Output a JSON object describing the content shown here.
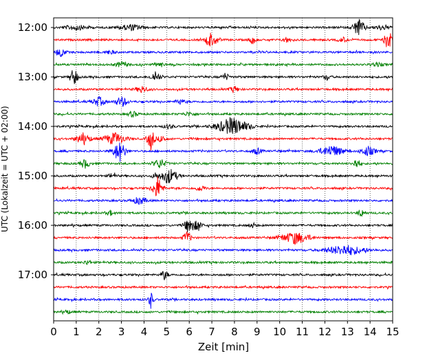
{
  "chart_data": {
    "type": "line",
    "title": "",
    "xlabel": "Zeit  [min]",
    "ylabel": "UTC (Lokalzeit = UTC + 02:00)",
    "xlim": [
      0,
      15
    ],
    "x_ticks": [
      "0",
      "1",
      "2",
      "3",
      "4",
      "5",
      "6",
      "7",
      "8",
      "9",
      "10",
      "11",
      "12",
      "13",
      "14",
      "15"
    ],
    "y_tick_labels": [
      "12:00",
      "13:00",
      "14:00",
      "15:00",
      "16:00",
      "17:00"
    ],
    "grid": "vertical dotted",
    "trace_colors": [
      "#000000",
      "#ff0000",
      "#0000ff",
      "#008000"
    ],
    "traces": [
      {
        "time": "12:00",
        "color": "#000000",
        "events": [
          [
            1.0,
            0.5,
            1.0
          ],
          [
            3.4,
            0.6,
            1.0
          ],
          [
            13.5,
            1.8,
            0.5
          ],
          [
            14.5,
            0.5,
            0.6
          ]
        ]
      },
      {
        "time": "12:15",
        "color": "#ff0000",
        "events": [
          [
            6.9,
            1.8,
            0.3
          ],
          [
            7.2,
            0.8,
            0.3
          ],
          [
            8.8,
            0.8,
            0.3
          ],
          [
            10.3,
            0.6,
            0.3
          ],
          [
            12.8,
            0.5,
            0.4
          ],
          [
            14.8,
            2.3,
            0.3
          ]
        ]
      },
      {
        "time": "12:30",
        "color": "#0000ff",
        "events": [
          [
            0.3,
            0.9,
            0.4
          ],
          [
            2.5,
            0.4,
            0.4
          ]
        ]
      },
      {
        "time": "12:45",
        "color": "#008000",
        "events": [
          [
            3.0,
            0.6,
            0.5
          ],
          [
            4.7,
            0.5,
            0.4
          ],
          [
            14.3,
            0.4,
            0.5
          ]
        ]
      },
      {
        "time": "13:00",
        "color": "#000000",
        "events": [
          [
            0.9,
            2.0,
            0.3
          ],
          [
            4.5,
            1.1,
            0.4
          ],
          [
            7.6,
            0.8,
            0.3
          ],
          [
            12.1,
            0.6,
            0.3
          ]
        ]
      },
      {
        "time": "13:15",
        "color": "#ff0000",
        "events": [
          [
            3.9,
            0.7,
            0.5
          ],
          [
            8.0,
            0.6,
            0.4
          ]
        ]
      },
      {
        "time": "13:30",
        "color": "#0000ff",
        "events": [
          [
            2.0,
            1.0,
            0.5
          ],
          [
            3.0,
            1.1,
            0.5
          ],
          [
            5.6,
            0.5,
            0.4
          ]
        ]
      },
      {
        "time": "13:45",
        "color": "#008000",
        "events": [
          [
            3.5,
            0.6,
            0.4
          ],
          [
            6.0,
            0.4,
            0.5
          ]
        ]
      },
      {
        "time": "14:00",
        "color": "#000000",
        "events": [
          [
            7.9,
            1.9,
            1.3
          ],
          [
            5.1,
            0.5,
            0.4
          ]
        ]
      },
      {
        "time": "14:15",
        "color": "#ff0000",
        "events": [
          [
            1.3,
            1.2,
            0.6
          ],
          [
            2.7,
            1.3,
            0.9
          ],
          [
            4.3,
            2.4,
            0.3
          ],
          [
            4.8,
            0.8,
            0.3
          ]
        ]
      },
      {
        "time": "14:30",
        "color": "#0000ff",
        "events": [
          [
            2.9,
            2.3,
            0.5
          ],
          [
            9.0,
            0.7,
            0.4
          ],
          [
            12.3,
            1.2,
            1.0
          ],
          [
            13.9,
            1.0,
            0.6
          ]
        ]
      },
      {
        "time": "14:45",
        "color": "#008000",
        "events": [
          [
            1.4,
            0.9,
            0.4
          ],
          [
            4.7,
            1.0,
            0.5
          ],
          [
            13.4,
            1.1,
            0.3
          ]
        ]
      },
      {
        "time": "15:00",
        "color": "#000000",
        "events": [
          [
            5.1,
            1.6,
            0.7
          ],
          [
            2.6,
            0.6,
            0.3
          ],
          [
            4.5,
            0.6,
            0.3
          ]
        ]
      },
      {
        "time": "15:15",
        "color": "#ff0000",
        "events": [
          [
            4.6,
            2.5,
            0.4
          ],
          [
            6.5,
            0.6,
            0.4
          ]
        ]
      },
      {
        "time": "15:30",
        "color": "#0000ff",
        "events": [
          [
            3.8,
            0.8,
            0.6
          ]
        ]
      },
      {
        "time": "15:45",
        "color": "#008000",
        "events": [
          [
            2.5,
            0.5,
            0.3
          ],
          [
            13.6,
            0.8,
            0.3
          ]
        ]
      },
      {
        "time": "16:00",
        "color": "#000000",
        "events": [
          [
            6.0,
            1.8,
            0.4
          ],
          [
            6.4,
            1.2,
            0.3
          ],
          [
            8.8,
            0.5,
            0.3
          ]
        ]
      },
      {
        "time": "16:15",
        "color": "#ff0000",
        "events": [
          [
            5.9,
            1.4,
            0.3
          ],
          [
            10.7,
            1.3,
            1.2
          ]
        ]
      },
      {
        "time": "16:30",
        "color": "#0000ff",
        "events": [
          [
            12.9,
            1.1,
            1.6
          ]
        ]
      },
      {
        "time": "16:45",
        "color": "#008000",
        "events": [
          [
            1.5,
            0.5,
            0.3
          ]
        ]
      },
      {
        "time": "17:00",
        "color": "#000000",
        "events": [
          [
            4.9,
            1.0,
            0.3
          ]
        ]
      },
      {
        "time": "17:15",
        "color": "#ff0000",
        "events": []
      },
      {
        "time": "17:30",
        "color": "#0000ff",
        "events": [
          [
            4.3,
            1.8,
            0.2
          ]
        ]
      },
      {
        "time": "17:45",
        "color": "#008000",
        "events": [
          [
            0.6,
            0.4,
            0.3
          ]
        ]
      }
    ]
  }
}
